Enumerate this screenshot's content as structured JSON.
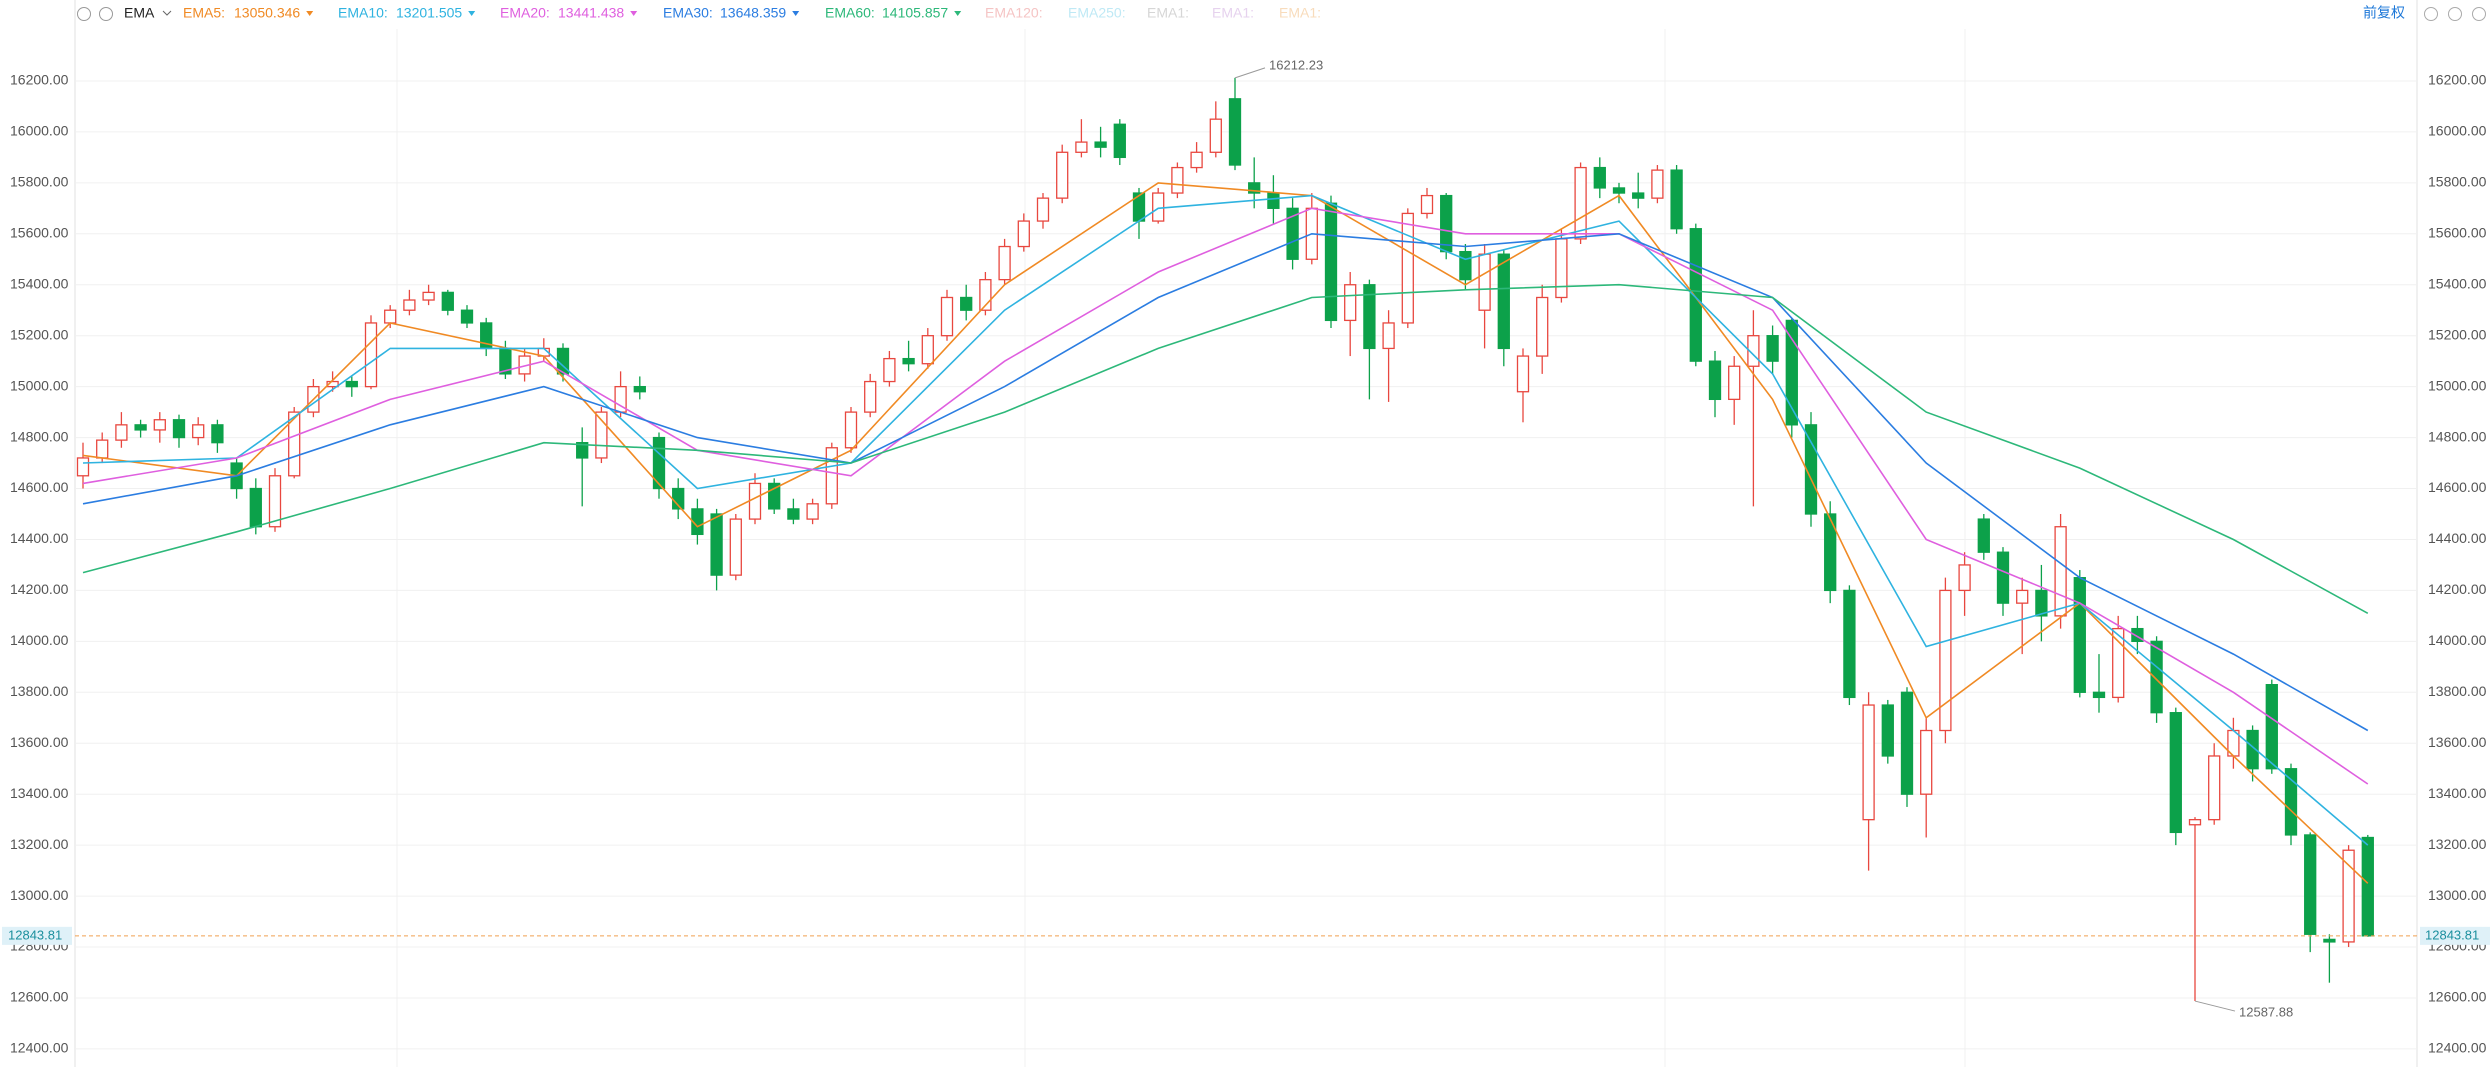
{
  "toolbar": {
    "indicator": "EMA",
    "right_label": "前复权"
  },
  "chart_data": {
    "type": "candlestick",
    "up_color": "#e8473f",
    "down_color": "#0ca14a",
    "ylim": [
      12329,
      16404
    ],
    "yticks": [
      {
        "value": 12400,
        "label": "12400.00"
      },
      {
        "value": 12600,
        "label": "12600.00"
      },
      {
        "value": 12800,
        "label": "12800.00"
      },
      {
        "value": 13000,
        "label": "13000.00"
      },
      {
        "value": 13200,
        "label": "13200.00"
      },
      {
        "value": 13400,
        "label": "13400.00"
      },
      {
        "value": 13600,
        "label": "13600.00"
      },
      {
        "value": 13800,
        "label": "13800.00"
      },
      {
        "value": 14000,
        "label": "14000.00"
      },
      {
        "value": 14200,
        "label": "14200.00"
      },
      {
        "value": 14400,
        "label": "14400.00"
      },
      {
        "value": 14600,
        "label": "14600.00"
      },
      {
        "value": 14800,
        "label": "14800.00"
      },
      {
        "value": 15000,
        "label": "15000.00"
      },
      {
        "value": 15200,
        "label": "15200.00"
      },
      {
        "value": 15400,
        "label": "15400.00"
      },
      {
        "value": 15600,
        "label": "15600.00"
      },
      {
        "value": 15800,
        "label": "15800.00"
      },
      {
        "value": 16000,
        "label": "16000.00"
      },
      {
        "value": 16200,
        "label": "16200.00"
      }
    ],
    "grid": true,
    "open": [
      14650,
      14720,
      14790,
      14850,
      14830,
      14870,
      14800,
      14850,
      14700,
      14600,
      14450,
      14650,
      14900,
      15000,
      15020,
      15000,
      15250,
      15300,
      15340,
      15370,
      15300,
      15250,
      15150,
      15050,
      15120,
      15150,
      14780,
      14720,
      14900,
      15000,
      14800,
      14600,
      14520,
      14500,
      14260,
      14480,
      14620,
      14520,
      14480,
      14540,
      14760,
      14900,
      15020,
      15110,
      15090,
      15200,
      15350,
      15300,
      15420,
      15550,
      15650,
      15740,
      15920,
      15960,
      16030,
      15760,
      15650,
      15760,
      15860,
      15920,
      16130,
      15800,
      15760,
      15700,
      15500,
      15720,
      15260,
      15400,
      15150,
      15250,
      15680,
      15750,
      15530,
      15300,
      15520,
      14980,
      15120,
      15350,
      15580,
      15860,
      15780,
      15760,
      15740,
      15850,
      15620,
      15100,
      14950,
      15080,
      15200,
      15260,
      14850,
      14500,
      14200,
      13300,
      13750,
      13800,
      13400,
      13650,
      14200,
      14480,
      14350,
      14150,
      14200,
      14100,
      14250,
      13800,
      13780,
      14050,
      14000,
      13720,
      13280,
      13300,
      13550,
      13650,
      13830,
      13500,
      13240,
      12830,
      12820,
      13230
    ],
    "high": [
      14780,
      14820,
      14900,
      14870,
      14900,
      14890,
      14880,
      14870,
      14720,
      14640,
      14680,
      14920,
      15030,
      15060,
      15040,
      15280,
      15320,
      15380,
      15400,
      15380,
      15320,
      15270,
      15180,
      15150,
      15190,
      15170,
      14840,
      14920,
      15060,
      15040,
      14820,
      14640,
      14560,
      14520,
      14500,
      14660,
      14640,
      14560,
      14560,
      14780,
      14920,
      15050,
      15140,
      15180,
      15230,
      15380,
      15400,
      15450,
      15580,
      15680,
      15760,
      15950,
      16050,
      16020,
      16050,
      15780,
      15780,
      15880,
      15960,
      16120,
      16212.23,
      15900,
      15830,
      15740,
      15760,
      15750,
      15450,
      15420,
      15300,
      15700,
      15780,
      15760,
      15560,
      15560,
      15540,
      15150,
      15400,
      15620,
      15880,
      15900,
      15800,
      15840,
      15870,
      15870,
      15640,
      15140,
      15120,
      15300,
      15240,
      15270,
      14900,
      14550,
      14220,
      13800,
      13770,
      13820,
      13700,
      14250,
      14350,
      14500,
      14370,
      14250,
      14300,
      14500,
      14280,
      13950,
      14100,
      14100,
      14020,
      13740,
      13310,
      13600,
      13700,
      13670,
      13850,
      13520,
      13250,
      12850,
      13200,
      13240
    ],
    "low": [
      14600,
      14700,
      14760,
      14800,
      14780,
      14760,
      14770,
      14740,
      14560,
      14420,
      14430,
      14640,
      14880,
      14980,
      14960,
      14990,
      15230,
      15280,
      15320,
      15280,
      15230,
      15120,
      15030,
      15020,
      15100,
      15020,
      14530,
      14700,
      14880,
      14950,
      14560,
      14480,
      14380,
      14200,
      14240,
      14460,
      14500,
      14460,
      14460,
      14520,
      14740,
      14880,
      15000,
      15060,
      15070,
      15180,
      15260,
      15280,
      15400,
      15530,
      15620,
      15720,
      15900,
      15900,
      15870,
      15580,
      15640,
      15740,
      15840,
      15900,
      15850,
      15700,
      15640,
      15460,
      15480,
      15230,
      15120,
      14950,
      14940,
      15230,
      15660,
      15500,
      15380,
      15150,
      15080,
      14860,
      15050,
      15330,
      15560,
      15740,
      15720,
      15700,
      15720,
      15600,
      15080,
      14880,
      14850,
      14530,
      15050,
      14800,
      14450,
      14150,
      13750,
      13100,
      13520,
      13350,
      13230,
      13600,
      14100,
      14320,
      14100,
      13950,
      14000,
      14050,
      13780,
      13720,
      13760,
      13950,
      13680,
      13200,
      12587.88,
      13280,
      13500,
      13450,
      13480,
      13200,
      12780,
      12660,
      12800,
      12840
    ],
    "close": [
      14720,
      14790,
      14850,
      14830,
      14870,
      14800,
      14850,
      14780,
      14600,
      14450,
      14650,
      14900,
      15000,
      15020,
      15000,
      15250,
      15300,
      15340,
      15370,
      15300,
      15250,
      15150,
      15050,
      15120,
      15150,
      15050,
      14720,
      14900,
      15000,
      14980,
      14600,
      14520,
      14420,
      14260,
      14480,
      14620,
      14520,
      14480,
      14540,
      14760,
      14900,
      15020,
      15110,
      15090,
      15200,
      15350,
      15300,
      15420,
      15550,
      15650,
      15740,
      15920,
      15960,
      15940,
      15900,
      15650,
      15760,
      15860,
      15920,
      16050,
      15870,
      15760,
      15700,
      15500,
      15700,
      15260,
      15400,
      15150,
      15250,
      15680,
      15750,
      15530,
      15420,
      15520,
      15150,
      15120,
      15350,
      15580,
      15860,
      15780,
      15760,
      15740,
      15850,
      15620,
      15100,
      14950,
      15080,
      15200,
      15100,
      14850,
      14500,
      14200,
      13780,
      13750,
      13550,
      13400,
      13650,
      14200,
      14300,
      14350,
      14150,
      14200,
      14100,
      14450,
      13800,
      13780,
      14050,
      14000,
      13720,
      13250,
      13300,
      13550,
      13650,
      13500,
      13500,
      13240,
      12850,
      12820,
      13180,
      12843.81
    ],
    "max_label": 16212.23,
    "max_index": 60,
    "min_label": 12587.88,
    "min_index": 110,
    "last_price": 12843.81,
    "last_price_color": "#f0a050",
    "ema": {
      "x": [
        0,
        8,
        16,
        24,
        32,
        40,
        48,
        56,
        64,
        72,
        80,
        88,
        96,
        104,
        112,
        119
      ],
      "series": [
        {
          "name": "EMA5:",
          "latest": 13050.346,
          "color": "#f08a24",
          "values": [
            14730,
            14650,
            15250,
            15120,
            14450,
            14750,
            15400,
            15800,
            15750,
            15400,
            15750,
            14950,
            13700,
            14150,
            13550,
            13050
          ]
        },
        {
          "name": "EMA10:",
          "latest": 13201.505,
          "color": "#2fb3e0",
          "values": [
            14700,
            14720,
            15150,
            15150,
            14600,
            14700,
            15300,
            15700,
            15750,
            15500,
            15650,
            15050,
            13980,
            14150,
            13650,
            13200
          ]
        },
        {
          "name": "EMA20:",
          "latest": 13441.438,
          "color": "#df5fdf",
          "values": [
            14620,
            14720,
            14950,
            15100,
            14750,
            14650,
            15100,
            15450,
            15700,
            15600,
            15600,
            15300,
            14400,
            14150,
            13800,
            13440
          ]
        },
        {
          "name": "EMA30:",
          "latest": 13648.359,
          "color": "#2b7de1",
          "values": [
            14540,
            14650,
            14850,
            15000,
            14800,
            14700,
            15000,
            15350,
            15600,
            15550,
            15600,
            15350,
            14700,
            14250,
            13950,
            13650
          ]
        },
        {
          "name": "EMA60:",
          "latest": 14105.857,
          "color": "#2db87a",
          "values": [
            14270,
            14430,
            14600,
            14780,
            14750,
            14700,
            14900,
            15150,
            15350,
            15380,
            15400,
            15350,
            14900,
            14680,
            14400,
            14110
          ]
        }
      ]
    },
    "inactive_indicators": [
      {
        "name": "EMA120:",
        "color": "#f5c4c4"
      },
      {
        "name": "EMA250:",
        "color": "#bfe9f5"
      },
      {
        "name": "EMA1:",
        "color": "#d6d6d6"
      },
      {
        "name": "EMA1:",
        "color": "#e6d2ee"
      },
      {
        "name": "EMA1:",
        "color": "#f8dcbc"
      }
    ]
  }
}
